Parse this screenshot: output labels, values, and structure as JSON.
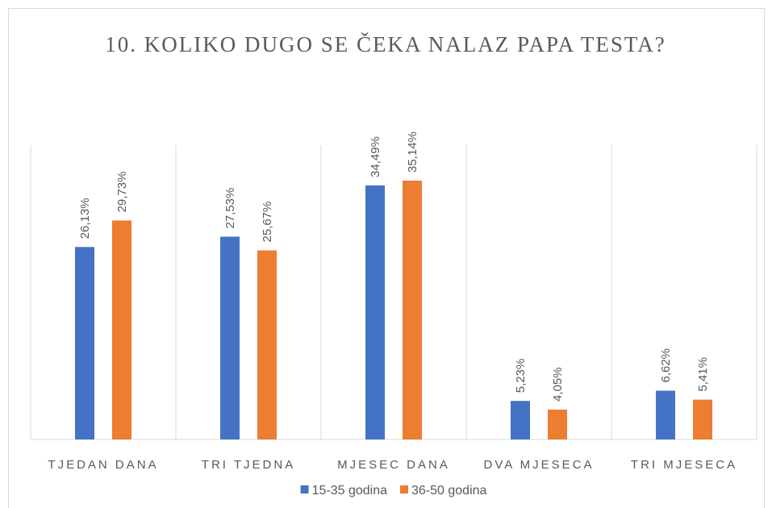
{
  "chart_data": {
    "type": "bar",
    "title": "10. KOLIKO DUGO SE ČEKA NALAZ PAPA TESTA?",
    "categories": [
      "TJEDAN DANA",
      "TRI TJEDNA",
      "MJESEC DANA",
      "DVA MJESECA",
      "TRI MJESECA"
    ],
    "series": [
      {
        "name": "15-35 godina",
        "color": "#4472c4",
        "values": [
          26.13,
          27.53,
          34.49,
          5.23,
          6.62
        ],
        "value_labels": [
          "26,13%",
          "27,53%",
          "34,49%",
          "5,23%",
          "6,62%"
        ]
      },
      {
        "name": "36-50 godina",
        "color": "#ed7d31",
        "values": [
          29.73,
          25.67,
          35.14,
          4.05,
          5.41
        ],
        "value_labels": [
          "29,73%",
          "25,67%",
          "35,14%",
          "4,05%",
          "5,41%"
        ]
      }
    ],
    "legend": "bottom"
  }
}
